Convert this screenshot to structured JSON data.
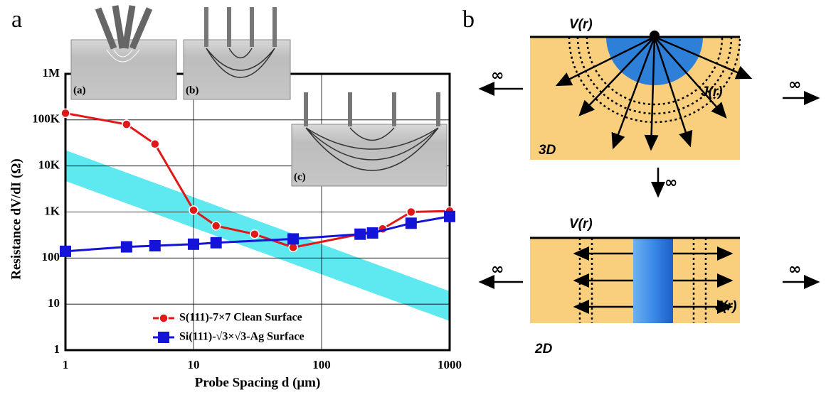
{
  "chart_data": {
    "type": "line",
    "xscale": "log",
    "yscale": "log",
    "grid": true,
    "xlabel": "Probe Spacing  d  (μm)",
    "ylabel": "Resistance  dV/dI  (Ω)",
    "xlim": [
      1,
      1000
    ],
    "ylim": [
      1,
      1000000
    ],
    "xticks": [
      1,
      10,
      100,
      1000
    ],
    "yticks": [
      1,
      10,
      100,
      {
        "value": 1000,
        "label": "1K"
      },
      {
        "value": 10000,
        "label": "10K"
      },
      {
        "value": 100000,
        "label": "100K"
      },
      {
        "value": 1000000,
        "label": "1M"
      }
    ],
    "series": [
      {
        "name": "S(111)-7×7 Clean Surface",
        "color": "#e01818",
        "marker": "circle",
        "x": [
          1,
          3,
          5,
          10,
          15,
          30,
          60,
          200,
          300,
          500,
          1000
        ],
        "values": [
          140000,
          80000,
          30000,
          1100,
          500,
          330,
          170,
          330,
          430,
          1000,
          1050
        ]
      },
      {
        "name": "Si(111)-√3×√3-Ag Surface",
        "color": "#1414d8",
        "marker": "square",
        "x": [
          1,
          3,
          5,
          10,
          15,
          60,
          200,
          250,
          500,
          1000
        ],
        "values": [
          140,
          175,
          185,
          200,
          215,
          260,
          330,
          350,
          570,
          800
        ]
      }
    ],
    "band": {
      "color": "#5ee8f0",
      "x": [
        1,
        1000
      ],
      "lower": [
        4700,
        4.3
      ],
      "upper": [
        22000,
        19
      ]
    }
  },
  "figure": {
    "panels": [
      "a",
      "b"
    ],
    "insets": [
      "(a)",
      "(b)",
      "(c)"
    ],
    "diagram": {
      "potential": "V(r)",
      "current": "J(r)",
      "dims": [
        "3D",
        "2D"
      ],
      "infinity": "∞"
    }
  }
}
